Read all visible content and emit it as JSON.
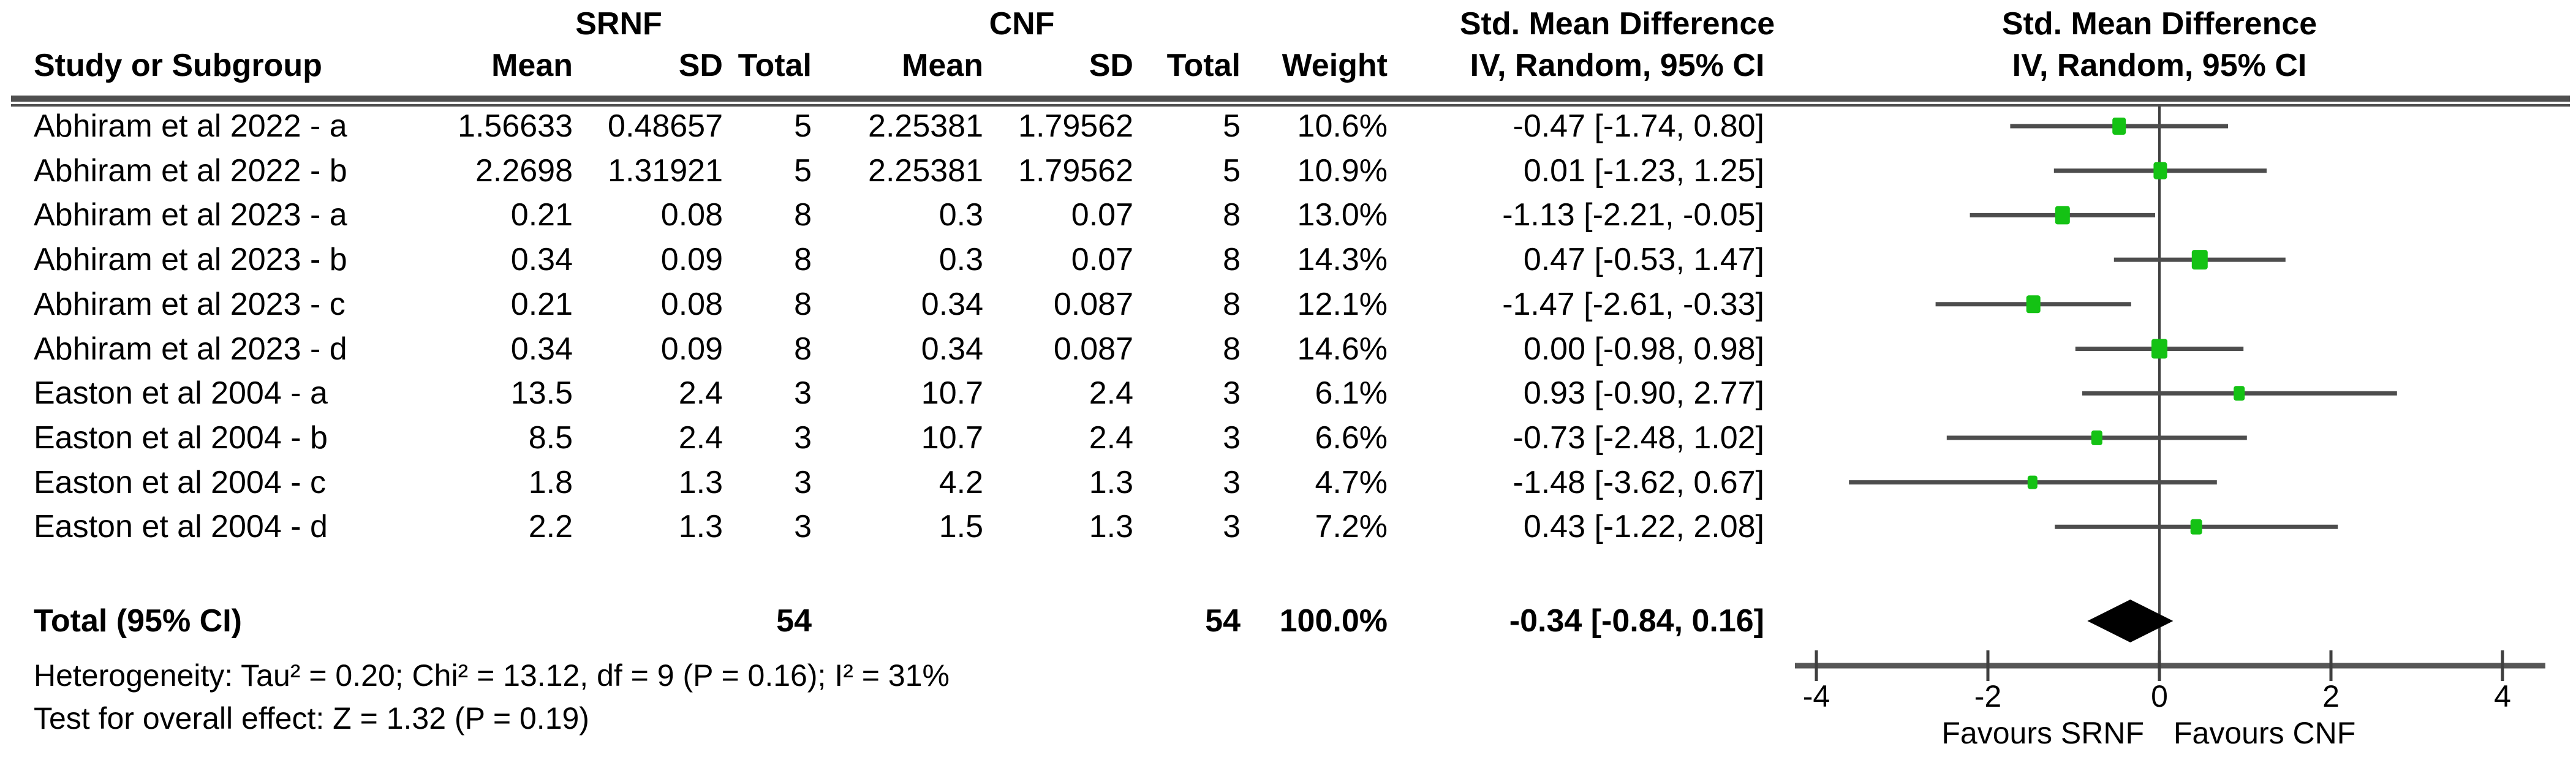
{
  "chart_data": {
    "type": "forest",
    "title_row": {
      "group1": "SRNF",
      "group2": "CNF",
      "effect_label": "Std. Mean Difference",
      "method_label": "IV, Random, 95% CI"
    },
    "columns": {
      "study": "Study or Subgroup",
      "mean": "Mean",
      "sd": "SD",
      "total": "Total",
      "weight": "Weight"
    },
    "studies": [
      {
        "label": "Abhiram et al 2022 - a",
        "mean_srnf": "1.56633",
        "sd_srnf": "0.48657",
        "total_srnf": "5",
        "mean_cnf": "2.25381",
        "sd_cnf": "1.79562",
        "total_cnf": "5",
        "weight": "10.6%",
        "weight_pct": 10.6,
        "smd": -0.47,
        "ci_low": -1.74,
        "ci_high": 0.8,
        "ci_text": "-0.47 [-1.74, 0.80]"
      },
      {
        "label": "Abhiram et al 2022 - b",
        "mean_srnf": "2.2698",
        "sd_srnf": "1.31921",
        "total_srnf": "5",
        "mean_cnf": "2.25381",
        "sd_cnf": "1.79562",
        "total_cnf": "5",
        "weight": "10.9%",
        "weight_pct": 10.9,
        "smd": 0.01,
        "ci_low": -1.23,
        "ci_high": 1.25,
        "ci_text": "0.01 [-1.23, 1.25]"
      },
      {
        "label": "Abhiram et al 2023 - a",
        "mean_srnf": "0.21",
        "sd_srnf": "0.08",
        "total_srnf": "8",
        "mean_cnf": "0.3",
        "sd_cnf": "0.07",
        "total_cnf": "8",
        "weight": "13.0%",
        "weight_pct": 13.0,
        "smd": -1.13,
        "ci_low": -2.21,
        "ci_high": -0.05,
        "ci_text": "-1.13 [-2.21, -0.05]"
      },
      {
        "label": "Abhiram et al 2023 - b",
        "mean_srnf": "0.34",
        "sd_srnf": "0.09",
        "total_srnf": "8",
        "mean_cnf": "0.3",
        "sd_cnf": "0.07",
        "total_cnf": "8",
        "weight": "14.3%",
        "weight_pct": 14.3,
        "smd": 0.47,
        "ci_low": -0.53,
        "ci_high": 1.47,
        "ci_text": "0.47 [-0.53, 1.47]"
      },
      {
        "label": "Abhiram et al 2023 - c",
        "mean_srnf": "0.21",
        "sd_srnf": "0.08",
        "total_srnf": "8",
        "mean_cnf": "0.34",
        "sd_cnf": "0.087",
        "total_cnf": "8",
        "weight": "12.1%",
        "weight_pct": 12.1,
        "smd": -1.47,
        "ci_low": -2.61,
        "ci_high": -0.33,
        "ci_text": "-1.47 [-2.61, -0.33]"
      },
      {
        "label": "Abhiram et al 2023 - d",
        "mean_srnf": "0.34",
        "sd_srnf": "0.09",
        "total_srnf": "8",
        "mean_cnf": "0.34",
        "sd_cnf": "0.087",
        "total_cnf": "8",
        "weight": "14.6%",
        "weight_pct": 14.6,
        "smd": 0.0,
        "ci_low": -0.98,
        "ci_high": 0.98,
        "ci_text": "0.00 [-0.98, 0.98]"
      },
      {
        "label": "Easton et al 2004 - a",
        "mean_srnf": "13.5",
        "sd_srnf": "2.4",
        "total_srnf": "3",
        "mean_cnf": "10.7",
        "sd_cnf": "2.4",
        "total_cnf": "3",
        "weight": "6.1%",
        "weight_pct": 6.1,
        "smd": 0.93,
        "ci_low": -0.9,
        "ci_high": 2.77,
        "ci_text": "0.93 [-0.90, 2.77]"
      },
      {
        "label": "Easton et al 2004 - b",
        "mean_srnf": "8.5",
        "sd_srnf": "2.4",
        "total_srnf": "3",
        "mean_cnf": "10.7",
        "sd_cnf": "2.4",
        "total_cnf": "3",
        "weight": "6.6%",
        "weight_pct": 6.6,
        "smd": -0.73,
        "ci_low": -2.48,
        "ci_high": 1.02,
        "ci_text": "-0.73 [-2.48, 1.02]"
      },
      {
        "label": "Easton et al 2004 - c",
        "mean_srnf": "1.8",
        "sd_srnf": "1.3",
        "total_srnf": "3",
        "mean_cnf": "4.2",
        "sd_cnf": "1.3",
        "total_cnf": "3",
        "weight": "4.7%",
        "weight_pct": 4.7,
        "smd": -1.48,
        "ci_low": -3.62,
        "ci_high": 0.67,
        "ci_text": "-1.48 [-3.62, 0.67]"
      },
      {
        "label": "Easton et al 2004 - d",
        "mean_srnf": "2.2",
        "sd_srnf": "1.3",
        "total_srnf": "3",
        "mean_cnf": "1.5",
        "sd_cnf": "1.3",
        "total_cnf": "3",
        "weight": "7.2%",
        "weight_pct": 7.2,
        "smd": 0.43,
        "ci_low": -1.22,
        "ci_high": 2.08,
        "ci_text": "0.43 [-1.22, 2.08]"
      }
    ],
    "total": {
      "label": "Total (95% CI)",
      "total_srnf": "54",
      "total_cnf": "54",
      "weight": "100.0%",
      "smd": -0.34,
      "ci_low": -0.84,
      "ci_high": 0.16,
      "ci_text": "-0.34 [-0.84, 0.16]"
    },
    "heterogeneity": "Heterogeneity: Tau² = 0.20; Chi² = 13.12, df = 9 (P = 0.16); I² = 31%",
    "overall_effect": "Test for overall effect: Z = 1.32 (P = 0.19)",
    "axis": {
      "min": -4,
      "max": 4,
      "ticks": [
        -4,
        -2,
        0,
        2,
        4
      ],
      "tick_labels": [
        "-4",
        "-2",
        "0",
        "2",
        "4"
      ]
    },
    "favours_left": "Favours SRNF",
    "favours_right": "Favours CNF",
    "colors": {
      "marker": "#14c214",
      "ci_line": "#4d4d4d",
      "axis": "#565656",
      "rule": "#4f4f4f",
      "diamond": "#000000",
      "text": "#000000"
    }
  }
}
